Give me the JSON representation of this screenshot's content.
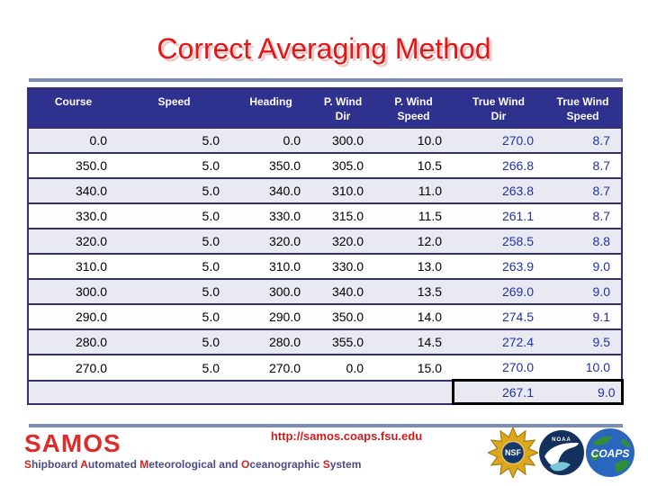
{
  "slide": {
    "title": "Correct Averaging Method"
  },
  "table": {
    "columns": [
      {
        "label": "Course"
      },
      {
        "label": "Speed"
      },
      {
        "label": "Heading"
      },
      {
        "label": "P. Wind\nDir"
      },
      {
        "label": "P. Wind\nSpeed"
      },
      {
        "label": "True Wind\nDir"
      },
      {
        "label": "True Wind\nSpeed"
      }
    ],
    "rows": [
      [
        "0.0",
        "5.0",
        "0.0",
        "300.0",
        "10.0",
        "270.0",
        "8.7"
      ],
      [
        "350.0",
        "5.0",
        "350.0",
        "305.0",
        "10.5",
        "266.8",
        "8.7"
      ],
      [
        "340.0",
        "5.0",
        "340.0",
        "310.0",
        "11.0",
        "263.8",
        "8.7"
      ],
      [
        "330.0",
        "5.0",
        "330.0",
        "315.0",
        "11.5",
        "261.1",
        "8.7"
      ],
      [
        "320.0",
        "5.0",
        "320.0",
        "320.0",
        "12.0",
        "258.5",
        "8.8"
      ],
      [
        "310.0",
        "5.0",
        "310.0",
        "330.0",
        "13.0",
        "263.9",
        "9.0"
      ],
      [
        "300.0",
        "5.0",
        "300.0",
        "340.0",
        "13.5",
        "269.0",
        "9.0"
      ],
      [
        "290.0",
        "5.0",
        "290.0",
        "350.0",
        "14.0",
        "274.5",
        "9.1"
      ],
      [
        "280.0",
        "5.0",
        "280.0",
        "355.0",
        "14.5",
        "272.4",
        "9.5"
      ],
      [
        "270.0",
        "5.0",
        "270.0",
        "0.0",
        "15.0",
        "270.0",
        "10.0"
      ]
    ],
    "summary": {
      "true_wind_dir": "267.1",
      "true_wind_speed": "9.0"
    },
    "colors": {
      "header_bg": "#2f318f",
      "border": "#32326e",
      "alt_row_bg": "#e9e9f2",
      "true_wind_value": "#2231a8",
      "summary_box_border": "#000000"
    }
  },
  "footer": {
    "url": "http://samos.coaps.fsu.edu",
    "acronym": "SAMOS",
    "acronym_words": [
      {
        "word": "Shipboard",
        "highlight_initial": true
      },
      {
        "word": "Automated",
        "highlight_initial": true
      },
      {
        "word": "Meteorological",
        "highlight_initial": true
      },
      {
        "word": "and",
        "highlight_initial": false
      },
      {
        "word": "Oceanographic",
        "highlight_initial": true
      },
      {
        "word": "System",
        "highlight_initial": true
      }
    ],
    "logos": [
      {
        "name": "NSF",
        "label": "NSF"
      },
      {
        "name": "NOAA",
        "label": "NOAA"
      },
      {
        "name": "COAPS",
        "label": "COAPS"
      }
    ],
    "colors": {
      "title_red": "#e11616",
      "samos_red": "#dd2c2c",
      "expansion_navy": "#4a4a85",
      "divider": "#7d8db9"
    }
  }
}
